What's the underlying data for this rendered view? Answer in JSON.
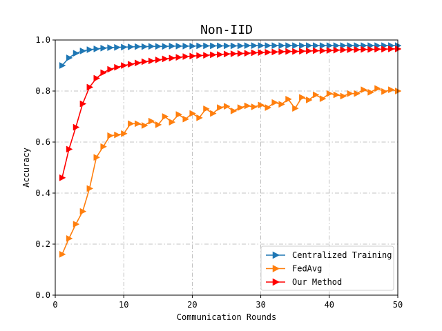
{
  "chart_data": {
    "type": "line",
    "title": "Non-IID",
    "xlabel": "Communication Rounds",
    "ylabel": "Accuracy",
    "xlim": [
      0,
      50
    ],
    "ylim": [
      0.0,
      1.0
    ],
    "xticks": [
      "0",
      "10",
      "20",
      "30",
      "40",
      "50"
    ],
    "yticks": [
      "0.0",
      "0.2",
      "0.4",
      "0.6",
      "0.8",
      "1.0"
    ],
    "grid": true,
    "legend_position": "lower-right",
    "x": [
      1,
      2,
      3,
      4,
      5,
      6,
      7,
      8,
      9,
      10,
      11,
      12,
      13,
      14,
      15,
      16,
      17,
      18,
      19,
      20,
      21,
      22,
      23,
      24,
      25,
      26,
      27,
      28,
      29,
      30,
      31,
      32,
      33,
      34,
      35,
      36,
      37,
      38,
      39,
      40,
      41,
      42,
      43,
      44,
      45,
      46,
      47,
      48,
      49,
      50
    ],
    "series": [
      {
        "name": "Centralized Training",
        "color": "#1f77b4",
        "values": [
          0.9,
          0.93,
          0.948,
          0.957,
          0.962,
          0.965,
          0.968,
          0.97,
          0.971,
          0.972,
          0.973,
          0.974,
          0.974,
          0.975,
          0.975,
          0.975,
          0.976,
          0.976,
          0.976,
          0.976,
          0.977,
          0.977,
          0.977,
          0.977,
          0.977,
          0.977,
          0.977,
          0.978,
          0.978,
          0.978,
          0.978,
          0.978,
          0.978,
          0.978,
          0.978,
          0.978,
          0.978,
          0.978,
          0.978,
          0.978,
          0.978,
          0.978,
          0.978,
          0.978,
          0.978,
          0.978,
          0.978,
          0.978,
          0.978,
          0.978
        ]
      },
      {
        "name": "FedAvg",
        "color": "#ff7f0e",
        "values": [
          0.16,
          0.222,
          0.278,
          0.328,
          0.418,
          0.54,
          0.582,
          0.625,
          0.628,
          0.633,
          0.672,
          0.672,
          0.665,
          0.682,
          0.668,
          0.7,
          0.678,
          0.708,
          0.69,
          0.712,
          0.695,
          0.73,
          0.712,
          0.735,
          0.74,
          0.722,
          0.735,
          0.742,
          0.738,
          0.745,
          0.735,
          0.755,
          0.748,
          0.768,
          0.732,
          0.775,
          0.765,
          0.785,
          0.77,
          0.79,
          0.785,
          0.78,
          0.79,
          0.79,
          0.805,
          0.795,
          0.81,
          0.798,
          0.805,
          0.8
        ]
      },
      {
        "name": "Our Method",
        "color": "#ff0000",
        "values": [
          0.46,
          0.572,
          0.658,
          0.75,
          0.815,
          0.85,
          0.872,
          0.885,
          0.893,
          0.9,
          0.905,
          0.91,
          0.915,
          0.918,
          0.922,
          0.926,
          0.929,
          0.932,
          0.935,
          0.937,
          0.939,
          0.94,
          0.942,
          0.943,
          0.945,
          0.946,
          0.947,
          0.948,
          0.95,
          0.951,
          0.952,
          0.953,
          0.954,
          0.955,
          0.955,
          0.956,
          0.957,
          0.958,
          0.958,
          0.959,
          0.96,
          0.961,
          0.962,
          0.962,
          0.963,
          0.963,
          0.964,
          0.964,
          0.965,
          0.965
        ]
      }
    ]
  }
}
